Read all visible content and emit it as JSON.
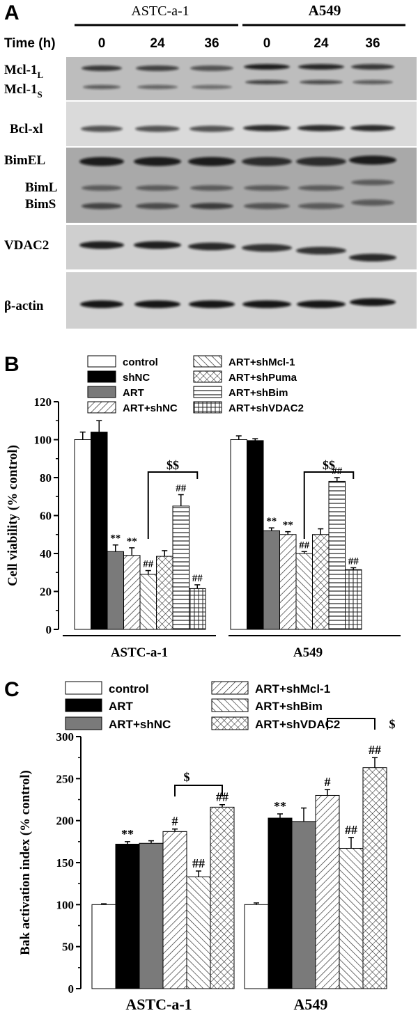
{
  "panels": [
    "A",
    "B",
    "C"
  ],
  "blot": {
    "cell_lines": [
      "ASTC-a-1",
      "A549"
    ],
    "time_label": "Time (h)",
    "times": [
      "0",
      "24",
      "36",
      "0",
      "24",
      "36"
    ],
    "row_labels": {
      "mcl1": "Mcl-1",
      "mcl1_l_sub": "L",
      "mcl1_s_sub": "S",
      "bclxl": "Bcl-xl",
      "bimel": "BimEL",
      "biml": "BimL",
      "bims": "BimS",
      "vdac2": "VDAC2",
      "actin": "β-actin"
    }
  },
  "chart_data": [
    {
      "panel": "B",
      "type": "bar",
      "categories": [
        "ASTC-a-1",
        "A549"
      ],
      "ylabel": "Cell viability (% control)",
      "ylim": [
        0,
        120
      ],
      "yticks": [
        0,
        20,
        40,
        60,
        80,
        100,
        120
      ],
      "series": [
        {
          "name": "control",
          "pattern": "white",
          "values": [
            100,
            100
          ],
          "errors": [
            4,
            2
          ]
        },
        {
          "name": "shNC",
          "pattern": "black",
          "values": [
            104,
            99.5
          ],
          "errors": [
            6,
            1
          ]
        },
        {
          "name": "ART",
          "pattern": "gray",
          "values": [
            41,
            52
          ],
          "errors": [
            3.5,
            1.5
          ]
        },
        {
          "name": "ART+shNC",
          "pattern": "diag-fwd",
          "values": [
            39,
            50
          ],
          "errors": [
            4,
            1.5
          ]
        },
        {
          "name": "ART+shMcl-1",
          "pattern": "diag-back",
          "values": [
            29,
            40
          ],
          "errors": [
            2,
            1
          ]
        },
        {
          "name": "ART+shPuma",
          "pattern": "crosshatch",
          "values": [
            38.5,
            50
          ],
          "errors": [
            3,
            3
          ]
        },
        {
          "name": "ART+shBim",
          "pattern": "horizontal",
          "values": [
            65,
            78
          ],
          "errors": [
            6,
            2
          ]
        },
        {
          "name": "ART+shVDAC2",
          "pattern": "grid",
          "values": [
            21.5,
            31.5
          ],
          "errors": [
            2,
            1
          ]
        }
      ],
      "annotations": {
        "ART": [
          "**",
          "**"
        ],
        "ART+shNC": [
          "**",
          "**"
        ],
        "ART+shMcl-1": [
          "##",
          "##"
        ],
        "ART+shBim": [
          "##",
          "##"
        ],
        "ART+shVDAC2": [
          "##",
          "##"
        ]
      },
      "bracket_label": "$$"
    },
    {
      "panel": "C",
      "type": "bar",
      "categories": [
        "ASTC-a-1",
        "A549"
      ],
      "ylabel": "Bak activation index (% control)",
      "ylim": [
        0,
        300
      ],
      "yticks": [
        0,
        50,
        100,
        150,
        200,
        250,
        300
      ],
      "series": [
        {
          "name": "control",
          "pattern": "white",
          "values": [
            100,
            100
          ],
          "errors": [
            1,
            2
          ]
        },
        {
          "name": "ART",
          "pattern": "black",
          "values": [
            172,
            203
          ],
          "errors": [
            3,
            5
          ]
        },
        {
          "name": "ART+shNC",
          "pattern": "gray",
          "values": [
            173,
            199
          ],
          "errors": [
            3,
            16
          ]
        },
        {
          "name": "ART+shMcl-1",
          "pattern": "diag-fwd",
          "values": [
            187,
            230
          ],
          "errors": [
            3,
            7
          ]
        },
        {
          "name": "ART+shBim",
          "pattern": "diag-back",
          "values": [
            133,
            167
          ],
          "errors": [
            7,
            13
          ]
        },
        {
          "name": "ART+shVDAC2",
          "pattern": "crosshatch",
          "values": [
            216,
            263
          ],
          "errors": [
            3,
            12
          ]
        }
      ],
      "annotations": {
        "ART": [
          "**",
          "**"
        ],
        "ART+shMcl-1": [
          "#",
          "#"
        ],
        "ART+shBim": [
          "##",
          "##"
        ],
        "ART+shVDAC2": [
          "##",
          "##"
        ]
      },
      "bracket_label": "$"
    }
  ]
}
